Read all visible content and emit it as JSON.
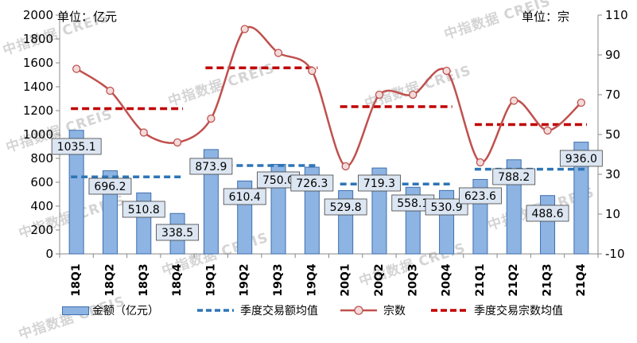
{
  "watermark": "中指数据 CREIS",
  "left_unit": "单位：亿元",
  "right_unit": "单位：宗",
  "legend": {
    "amount": "金额（亿元）",
    "amount_avg": "季度交易额均值",
    "count": "宗数",
    "count_avg": "季度交易宗数均值"
  },
  "colors": {
    "bar_fill": "#8db4e2",
    "bar_stroke": "#3f6fae",
    "amount_avg": "#2e75b6",
    "count_line": "#c0504d",
    "count_avg": "#c00000",
    "label_box": "#dce6f2"
  },
  "chart_data": {
    "type": "bar",
    "categories": [
      "18Q1",
      "18Q2",
      "18Q3",
      "18Q4",
      "19Q1",
      "19Q2",
      "19Q3",
      "19Q4",
      "20Q1",
      "20Q2",
      "20Q3",
      "20Q4",
      "21Q1",
      "21Q2",
      "21Q3",
      "21Q4"
    ],
    "y_left": {
      "min": 0,
      "max": 2000,
      "step": 200,
      "ticks": [
        "0",
        "200",
        "400",
        "600",
        "800",
        "1000",
        "1200",
        "1400",
        "1600",
        "1800",
        "2000"
      ]
    },
    "y_right": {
      "min": -10,
      "max": 110,
      "step": 20,
      "ticks": [
        "-10",
        "10",
        "30",
        "50",
        "70",
        "90",
        "110"
      ]
    },
    "grid": false,
    "legend_position": "bottom",
    "series": [
      {
        "name": "金额（亿元）",
        "type": "bar",
        "axis": "left",
        "values": [
          1035.1,
          696.2,
          510.8,
          338.5,
          873.9,
          610.4,
          750.0,
          726.3,
          529.8,
          719.3,
          558.1,
          530.9,
          623.6,
          788.2,
          488.6,
          936.0
        ],
        "labels": [
          "1035.1",
          "696.2",
          "510.8",
          "338.5",
          "873.9",
          "610.4",
          "750.0",
          "726.3",
          "529.8",
          "719.3",
          "558.1",
          "530.9",
          "623.6",
          "788.2",
          "488.6",
          "936.0"
        ]
      },
      {
        "name": "季度交易额均值",
        "type": "line-dashed",
        "axis": "left",
        "segments": [
          {
            "from": "18Q1",
            "to": "18Q4",
            "value": 645
          },
          {
            "from": "19Q1",
            "to": "19Q4",
            "value": 740
          },
          {
            "from": "20Q1",
            "to": "20Q4",
            "value": 585
          },
          {
            "from": "21Q1",
            "to": "21Q4",
            "value": 709
          }
        ]
      },
      {
        "name": "宗数",
        "type": "line-smooth",
        "axis": "right",
        "values": [
          83,
          72,
          51,
          46,
          58,
          103,
          91,
          82,
          34,
          70,
          70,
          82,
          36,
          67,
          52,
          66
        ]
      },
      {
        "name": "季度交易宗数均值",
        "type": "line-dashed",
        "axis": "right",
        "segments": [
          {
            "from": "18Q1",
            "to": "18Q4",
            "value": 63
          },
          {
            "from": "19Q1",
            "to": "19Q4",
            "value": 83.5
          },
          {
            "from": "20Q1",
            "to": "20Q4",
            "value": 64
          },
          {
            "from": "21Q1",
            "to": "21Q4",
            "value": 55
          }
        ]
      }
    ]
  }
}
